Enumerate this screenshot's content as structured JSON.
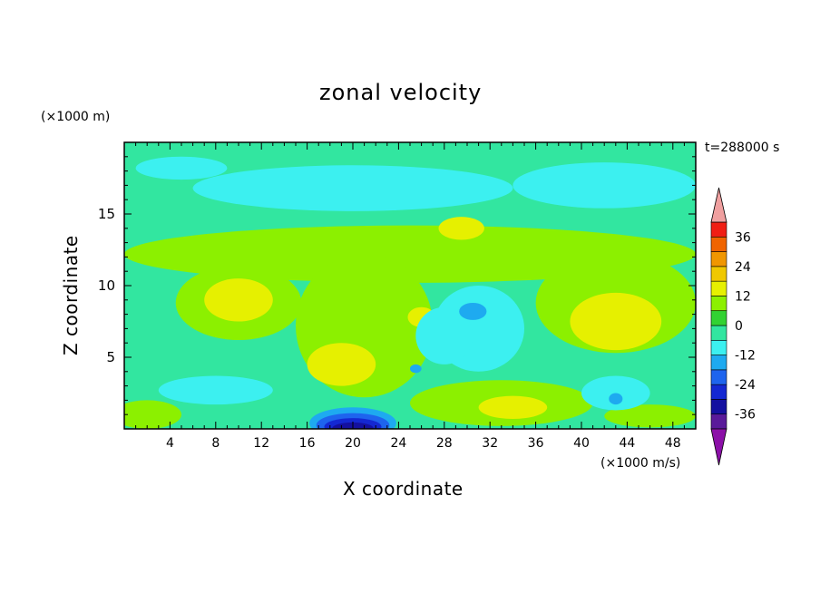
{
  "chart_data": {
    "type": "heatmap",
    "title": "zonal velocity",
    "xlabel": "X coordinate",
    "ylabel": "Z coordinate",
    "x_unit_label": "(×1000 m/s)",
    "y_unit_label": "(×1000 m)",
    "time_label": "t=288000 s",
    "xlim": [
      0,
      50
    ],
    "ylim": [
      0,
      20
    ],
    "x_ticks": [
      4,
      8,
      12,
      16,
      20,
      24,
      28,
      32,
      36,
      40,
      44,
      48
    ],
    "y_ticks": [
      5,
      10,
      15
    ],
    "colorbar": {
      "levels": [
        -42,
        -36,
        -30,
        -24,
        -18,
        -12,
        -6,
        0,
        6,
        12,
        18,
        24,
        30,
        36,
        42
      ],
      "tick_values": [
        -36,
        -24,
        -12,
        0,
        12,
        24,
        36
      ],
      "tick_labels": [
        "-36",
        "-24",
        "-12",
        "0",
        "12",
        "24",
        "36"
      ],
      "colors": [
        "#5a1a9a",
        "#1410a0",
        "#1428d2",
        "#1e64ee",
        "#1eaaf0",
        "#3cf0f0",
        "#32e6a0",
        "#32d232",
        "#8cf000",
        "#e6f000",
        "#f0c800",
        "#f09600",
        "#f06400",
        "#f01e14"
      ],
      "under_color": "#8c10a8",
      "over_color": "#f0a0a0"
    },
    "field": {
      "background": 3,
      "features": [
        {
          "x": 25,
          "z": 12.2,
          "rx": 25,
          "ry": 2.0,
          "level": 1
        },
        {
          "x": 10,
          "z": 8.8,
          "rx": 5.5,
          "ry": 2.6,
          "level": 1
        },
        {
          "x": 21,
          "z": 7.2,
          "rx": 6,
          "ry": 5,
          "level": 1
        },
        {
          "x": 30,
          "z": 12.5,
          "rx": 6,
          "ry": 1.5,
          "level": 1
        },
        {
          "x": 43,
          "z": 8.8,
          "rx": 7,
          "ry": 3.5,
          "level": 1
        },
        {
          "x": 33,
          "z": 1.8,
          "rx": 8,
          "ry": 1.6,
          "level": 1
        },
        {
          "x": 46,
          "z": 0.9,
          "rx": 4,
          "ry": 0.8,
          "level": 1
        },
        {
          "x": 2,
          "z": 1,
          "rx": 3,
          "ry": 1,
          "level": 1
        },
        {
          "x": 10,
          "z": 9,
          "rx": 3,
          "ry": 1.5,
          "level": 2
        },
        {
          "x": 19,
          "z": 4.5,
          "rx": 3,
          "ry": 1.5,
          "level": 2
        },
        {
          "x": 29.5,
          "z": 14,
          "rx": 2,
          "ry": 0.8,
          "level": 2
        },
        {
          "x": 43,
          "z": 7.5,
          "rx": 4,
          "ry": 2,
          "level": 2
        },
        {
          "x": 34,
          "z": 1.5,
          "rx": 3,
          "ry": 0.8,
          "level": 2
        },
        {
          "x": 26,
          "z": 7.8,
          "rx": 1.2,
          "ry": 0.7,
          "level": 2
        },
        {
          "x": 31,
          "z": 7,
          "rx": 4,
          "ry": 3,
          "level": -1
        },
        {
          "x": 20,
          "z": 16.8,
          "rx": 14,
          "ry": 1.6,
          "level": -1
        },
        {
          "x": 42,
          "z": 17,
          "rx": 8,
          "ry": 1.6,
          "level": -1
        },
        {
          "x": 5,
          "z": 18.2,
          "rx": 4,
          "ry": 0.8,
          "level": -1
        },
        {
          "x": 43,
          "z": 2.5,
          "rx": 3,
          "ry": 1.2,
          "level": -1
        },
        {
          "x": 8,
          "z": 2.7,
          "rx": 5,
          "ry": 1,
          "level": -1
        },
        {
          "x": 28,
          "z": 6.5,
          "rx": 2.5,
          "ry": 2,
          "level": -1
        },
        {
          "x": 30.5,
          "z": 8.2,
          "rx": 1.2,
          "ry": 0.6,
          "level": -2
        },
        {
          "x": 43,
          "z": 2.1,
          "rx": 0.6,
          "ry": 0.4,
          "level": -2
        },
        {
          "x": 25.5,
          "z": 4.2,
          "rx": 0.5,
          "ry": 0.3,
          "level": -2
        },
        {
          "x": 20,
          "z": 0.4,
          "rx": 3.8,
          "ry": 1.1,
          "level": -2
        },
        {
          "x": 20,
          "z": 0.25,
          "rx": 3.2,
          "ry": 0.85,
          "level": -3
        },
        {
          "x": 20,
          "z": 0.15,
          "rx": 2.5,
          "ry": 0.6,
          "level": -4
        },
        {
          "x": 20,
          "z": 0.05,
          "rx": 1.8,
          "ry": 0.4,
          "level": -5
        }
      ]
    }
  }
}
